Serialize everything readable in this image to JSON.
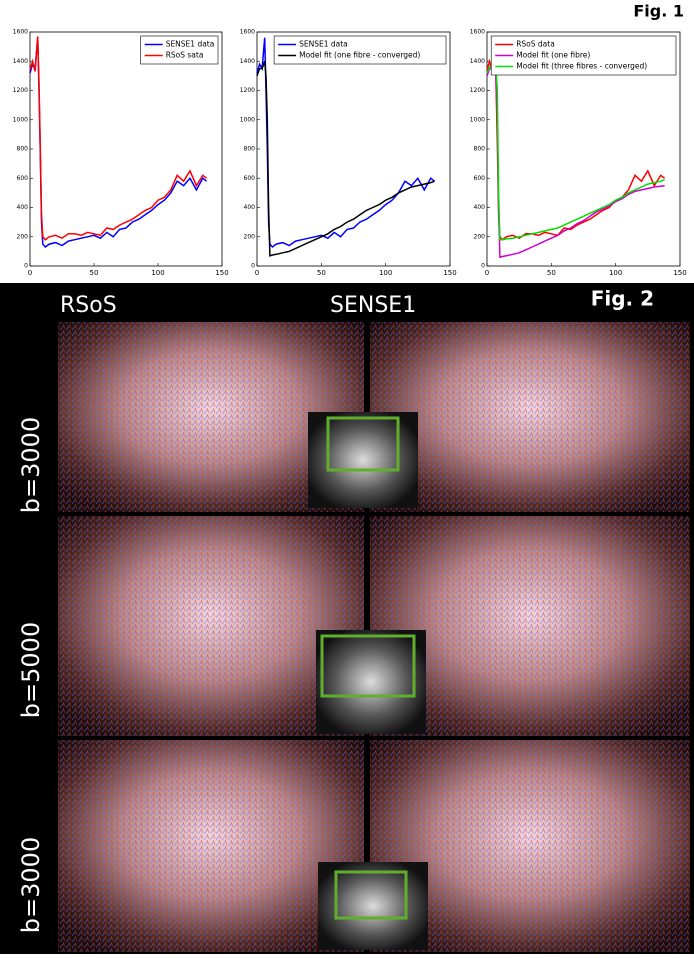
{
  "figure_labels": {
    "fig1": "Fig. 1",
    "fig2": "Fig. 2"
  },
  "columns": [
    "RSoS",
    "SENSE1"
  ],
  "rows": [
    "b=3000",
    "b=5000",
    "b=3000"
  ],
  "chart_data": [
    {
      "type": "line",
      "legend": "upper right",
      "x": [
        0,
        2,
        4,
        6,
        7,
        8,
        9,
        10,
        12,
        15,
        20,
        25,
        30,
        35,
        40,
        45,
        50,
        55,
        60,
        65,
        70,
        75,
        80,
        85,
        90,
        95,
        100,
        105,
        110,
        115,
        120,
        125,
        130,
        135,
        138
      ],
      "xlim": [
        0,
        150
      ],
      "xticks": [
        0,
        50,
        100,
        150
      ],
      "ylim": [
        0,
        1600
      ],
      "yticks": [
        0,
        200,
        400,
        600,
        800,
        1000,
        1200,
        1400,
        1600
      ],
      "series": [
        {
          "name": "SENSE1 data",
          "color": "#0000ff",
          "values": [
            1320,
            1380,
            1350,
            1560,
            1200,
            800,
            300,
            150,
            130,
            150,
            160,
            140,
            170,
            180,
            190,
            200,
            210,
            190,
            230,
            200,
            250,
            260,
            300,
            320,
            350,
            380,
            420,
            450,
            500,
            580,
            550,
            600,
            520,
            600,
            580
          ]
        },
        {
          "name": "RSoS sata",
          "color": "#ff0000",
          "values": [
            1340,
            1400,
            1330,
            1570,
            1250,
            850,
            350,
            200,
            180,
            200,
            210,
            190,
            220,
            220,
            210,
            230,
            220,
            210,
            260,
            250,
            280,
            300,
            320,
            350,
            380,
            400,
            450,
            470,
            520,
            620,
            580,
            650,
            550,
            620,
            600
          ]
        }
      ]
    },
    {
      "type": "line",
      "legend": "upper right",
      "x": [
        0,
        2,
        4,
        6,
        7,
        8,
        9,
        10,
        12,
        15,
        20,
        25,
        30,
        35,
        40,
        45,
        50,
        55,
        60,
        65,
        70,
        75,
        80,
        85,
        90,
        95,
        100,
        105,
        110,
        115,
        120,
        125,
        130,
        135,
        138
      ],
      "xlim": [
        0,
        150
      ],
      "xticks": [
        0,
        50,
        100,
        150
      ],
      "ylim": [
        0,
        1600
      ],
      "yticks": [
        0,
        200,
        400,
        600,
        800,
        1000,
        1200,
        1400,
        1600
      ],
      "series": [
        {
          "name": "SENSE1 data",
          "color": "#0000ff",
          "values": [
            1320,
            1380,
            1350,
            1560,
            1200,
            800,
            300,
            150,
            130,
            150,
            160,
            140,
            170,
            180,
            190,
            200,
            210,
            190,
            230,
            200,
            250,
            260,
            300,
            320,
            350,
            380,
            420,
            450,
            500,
            580,
            550,
            600,
            520,
            600,
            580
          ]
        },
        {
          "name": "Model fit (one fibre - converged)",
          "color": "#000000",
          "values": [
            1300,
            1350,
            1350,
            1400,
            1300,
            1000,
            400,
            70,
            75,
            80,
            90,
            100,
            120,
            140,
            160,
            180,
            200,
            220,
            250,
            270,
            300,
            320,
            350,
            380,
            400,
            420,
            450,
            470,
            500,
            520,
            540,
            550,
            560,
            570,
            580
          ]
        }
      ]
    },
    {
      "type": "line",
      "legend": "upper right",
      "x": [
        0,
        2,
        4,
        6,
        7,
        8,
        9,
        10,
        12,
        15,
        20,
        25,
        30,
        35,
        40,
        45,
        50,
        55,
        60,
        65,
        70,
        75,
        80,
        85,
        90,
        95,
        100,
        105,
        110,
        115,
        120,
        125,
        130,
        135,
        138
      ],
      "xlim": [
        0,
        150
      ],
      "xticks": [
        0,
        50,
        100,
        150
      ],
      "ylim": [
        0,
        1600
      ],
      "yticks": [
        0,
        200,
        400,
        600,
        800,
        1000,
        1200,
        1400,
        1600
      ],
      "series": [
        {
          "name": "RSoS data",
          "color": "#ff0000",
          "values": [
            1340,
            1400,
            1330,
            1570,
            1250,
            850,
            350,
            200,
            180,
            200,
            210,
            190,
            220,
            220,
            210,
            230,
            220,
            210,
            260,
            250,
            280,
            300,
            320,
            350,
            380,
            400,
            450,
            470,
            520,
            620,
            580,
            650,
            550,
            620,
            600
          ]
        },
        {
          "name": "Model fit (one fibre)",
          "color": "#cc00cc",
          "values": [
            1300,
            1350,
            1350,
            1400,
            1300,
            1000,
            400,
            60,
            65,
            70,
            80,
            90,
            110,
            130,
            150,
            170,
            190,
            210,
            240,
            260,
            290,
            310,
            340,
            370,
            390,
            410,
            440,
            460,
            490,
            510,
            520,
            530,
            540,
            545,
            550
          ]
        },
        {
          "name": "Model fit (three fibres - converged)",
          "color": "#00dd00",
          "values": [
            1320,
            1360,
            1350,
            1380,
            1350,
            1200,
            500,
            180,
            180,
            185,
            190,
            200,
            210,
            220,
            230,
            240,
            250,
            260,
            280,
            300,
            320,
            340,
            360,
            380,
            400,
            420,
            450,
            470,
            500,
            520,
            540,
            560,
            570,
            580,
            590
          ]
        }
      ]
    }
  ]
}
